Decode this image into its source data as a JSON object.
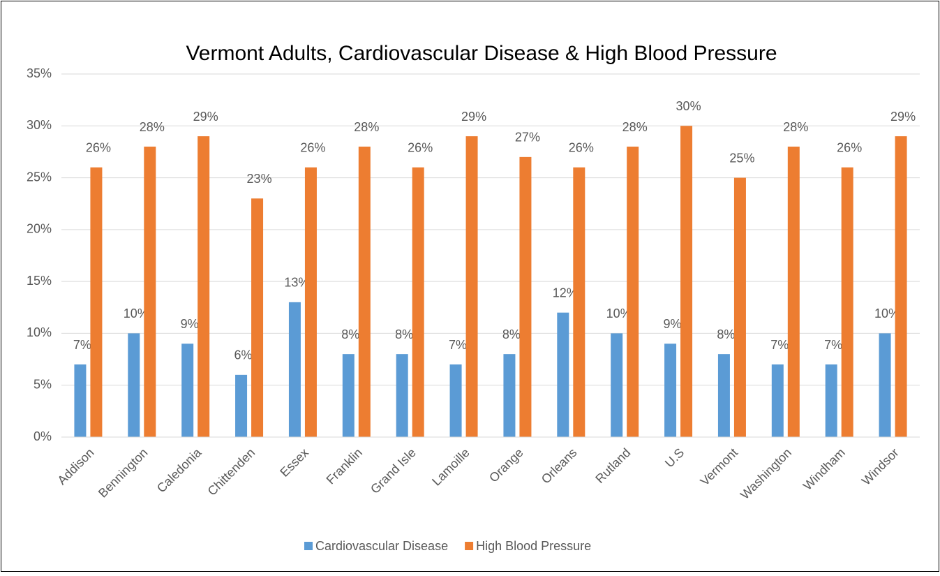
{
  "chart_data": {
    "type": "bar",
    "title": "Vermont Adults, Cardiovascular Disease & High Blood Pressure",
    "categories": [
      "Addison",
      "Bennington",
      "Caledonia",
      "Chittenden",
      "Essex",
      "Franklin",
      "Grand Isle",
      "Lamoille",
      "Orange",
      "Orleans",
      "Rutland",
      "U.S",
      "Vermont",
      "Washington",
      "Windham",
      "Windsor"
    ],
    "series": [
      {
        "name": "Cardiovascular Disease",
        "color": "#5b9bd5",
        "values": [
          7,
          10,
          9,
          6,
          13,
          8,
          8,
          7,
          8,
          12,
          10,
          9,
          8,
          7,
          7,
          10
        ],
        "value_labels": [
          "7%",
          "10%",
          "9%",
          "6%",
          "13%",
          "8%",
          "8%",
          "7%",
          "8%",
          "12%",
          "10%",
          "9%",
          "8%",
          "7%",
          "7%",
          "10%"
        ]
      },
      {
        "name": "High Blood Pressure",
        "color": "#ed7d31",
        "values": [
          26,
          28,
          29,
          23,
          26,
          28,
          26,
          29,
          27,
          26,
          28,
          30,
          25,
          28,
          26,
          29
        ],
        "value_labels": [
          "26%",
          "28%",
          "29%",
          "23%",
          "26%",
          "28%",
          "26%",
          "29%",
          "27%",
          "26%",
          "28%",
          "30%",
          "25%",
          "28%",
          "26%",
          "29%"
        ]
      }
    ],
    "ylim": [
      0,
      35
    ],
    "yticks": [
      {
        "value": 0,
        "label": "0%"
      },
      {
        "value": 5,
        "label": "5%"
      },
      {
        "value": 10,
        "label": "10%"
      },
      {
        "value": 15,
        "label": "15%"
      },
      {
        "value": 20,
        "label": "20%"
      },
      {
        "value": 25,
        "label": "25%"
      },
      {
        "value": 30,
        "label": "30%"
      },
      {
        "value": 35,
        "label": "35%"
      }
    ],
    "grid": true,
    "legend": "bottom"
  }
}
